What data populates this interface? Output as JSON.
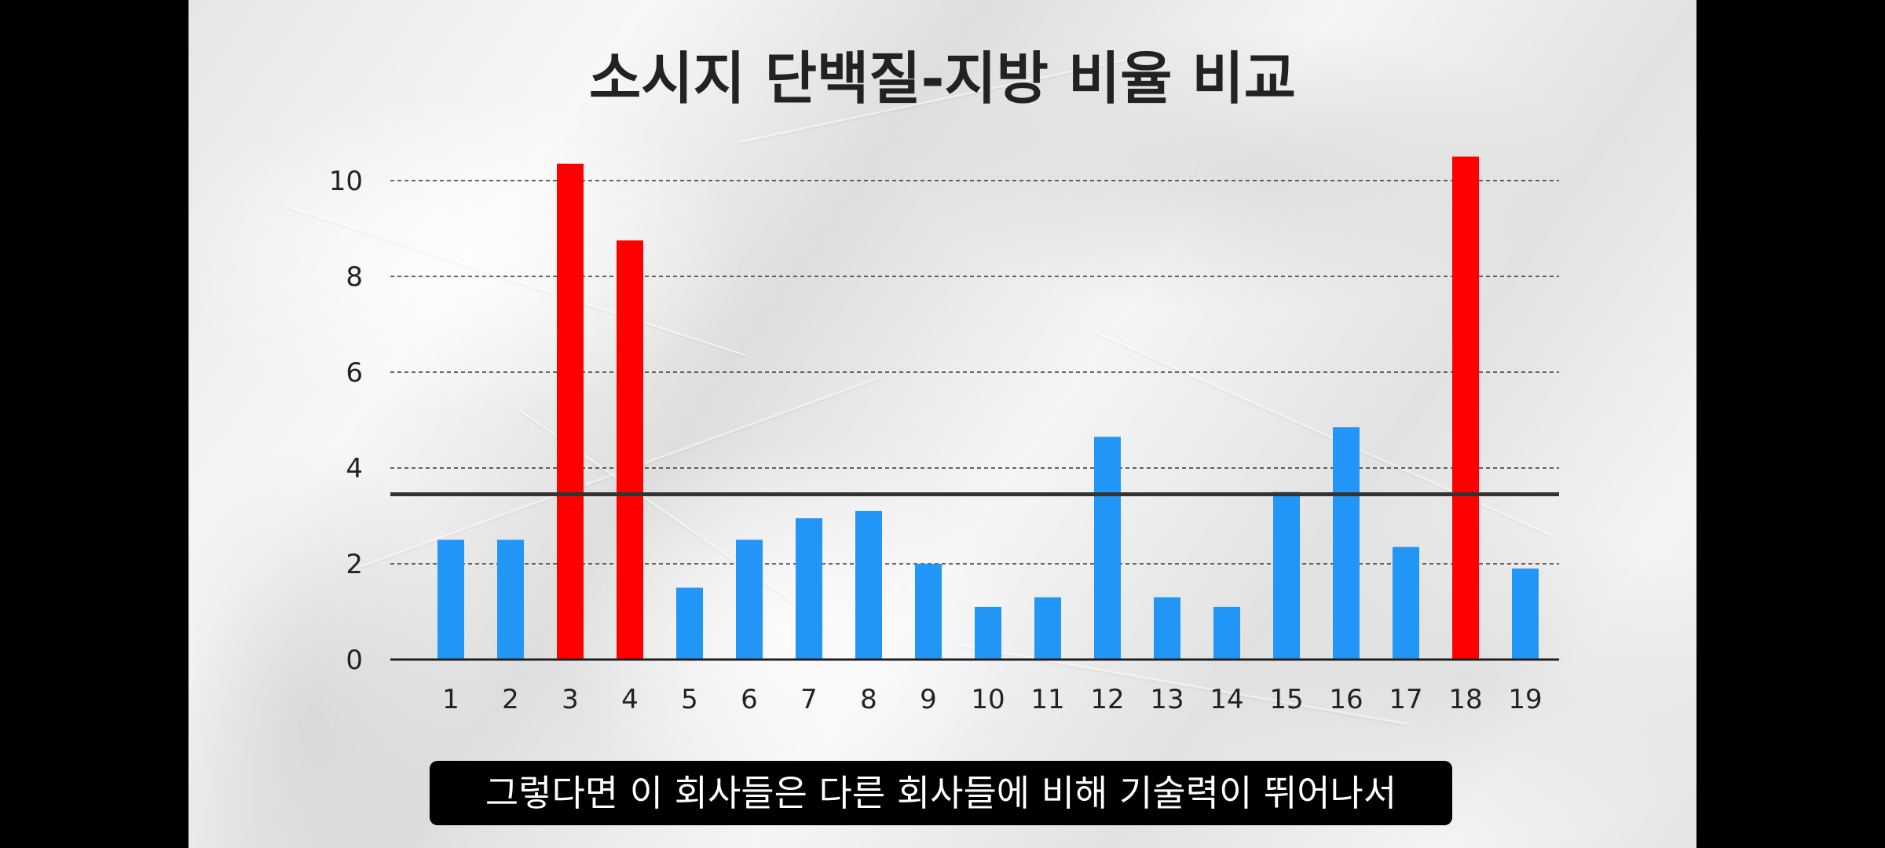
{
  "caption": "그렇다면 이 회사들은 다른 회사들에 비해 기술력이 뛰어나서",
  "colors": {
    "normal": "#2196f7",
    "highlight": "#ff0000",
    "reference_line": "#333333",
    "caption_bg": "#000000",
    "caption_text": "#ffffff"
  },
  "chart_data": {
    "type": "bar",
    "title": "소시지 단백질-지방 비율 비교",
    "xlabel": "",
    "ylabel": "",
    "categories": [
      "1",
      "2",
      "3",
      "4",
      "5",
      "6",
      "7",
      "8",
      "9",
      "10",
      "11",
      "12",
      "13",
      "14",
      "15",
      "16",
      "17",
      "18",
      "19"
    ],
    "values": [
      2.5,
      2.5,
      10.35,
      8.75,
      1.5,
      2.5,
      2.95,
      3.1,
      2.0,
      1.1,
      1.3,
      4.65,
      1.3,
      1.1,
      3.5,
      4.85,
      2.35,
      10.5,
      1.9
    ],
    "highlighted": [
      "3",
      "4",
      "18"
    ],
    "reference_line": 3.45,
    "yticks": [
      0,
      2,
      4,
      6,
      8,
      10
    ],
    "ylim": [
      0,
      10.5
    ],
    "grid": "dashed horizontal"
  }
}
